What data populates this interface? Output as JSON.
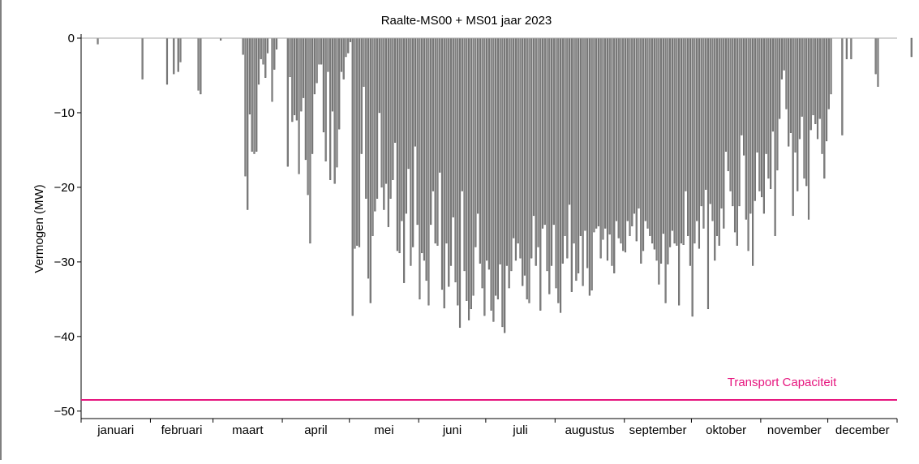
{
  "chart_data": {
    "type": "bar",
    "title": "Raalte-MS00 + MS01 jaar 2023",
    "xlabel": "",
    "ylabel": "Vermogen (MW)",
    "ylim": [
      -51,
      0
    ],
    "yticks": [
      0,
      -10,
      -20,
      -30,
      -40,
      -50
    ],
    "ytick_labels": [
      "0",
      "−10",
      "−20",
      "−30",
      "−40",
      "−50"
    ],
    "xlim": [
      0,
      365
    ],
    "months": [
      "januari",
      "februari",
      "maart",
      "april",
      "mei",
      "juni",
      "juli",
      "augustus",
      "september",
      "oktober",
      "november",
      "december"
    ],
    "month_starts": [
      0,
      31,
      59,
      90,
      120,
      151,
      181,
      212,
      243,
      273,
      304,
      334,
      365
    ],
    "grid": false,
    "bar_color": "#808080",
    "bar_edge_color": "#555555",
    "series": [
      {
        "values": [
          0,
          0,
          0,
          0,
          0,
          0,
          0,
          -0.8,
          0,
          0,
          0,
          0,
          0,
          0,
          0,
          0,
          0,
          0,
          0,
          0,
          0,
          0,
          0,
          0,
          0,
          0,
          0,
          -5.5,
          0,
          0,
          0,
          0,
          0,
          0,
          0,
          0,
          0,
          0,
          -6.2,
          0,
          0,
          -4.8,
          0,
          -4.5,
          -3.2,
          0,
          0,
          0,
          0,
          0,
          0,
          0,
          -7,
          -7.5,
          0,
          0,
          0,
          0,
          0,
          0,
          0,
          0,
          -0.3,
          0,
          0,
          0,
          0,
          0,
          0,
          0,
          0,
          0,
          -2.2,
          -18.5,
          -23,
          -10.2,
          -15.2,
          -15.5,
          -15.2,
          -6.2,
          -2.8,
          -3.5,
          -5.3,
          -2,
          0,
          -8.5,
          -4.2,
          -1.5,
          0,
          0,
          0,
          0,
          -17.2,
          -5.2,
          -11.2,
          -10.3,
          -11,
          -18.2,
          -9.8,
          -8,
          -16.3,
          -21,
          -27.5,
          -15.5,
          -7.5,
          -6,
          -3.5,
          -3.5,
          -12.6,
          -16.5,
          -4.5,
          -19,
          -9.8,
          -19.5,
          -17.3,
          -12.2,
          -4.5,
          -5.5,
          -2.5,
          -2,
          -0.5,
          -37.2,
          -28.2,
          -27.8,
          -28,
          -15.5,
          -6.5,
          -21.5,
          -32.2,
          -35.5,
          -26.5,
          -23.2,
          -21.5,
          -10,
          -20,
          -23,
          -19.5,
          -25.3,
          -21.5,
          -19,
          -14,
          -28.5,
          -28.8,
          -24.5,
          -32.8,
          -23.5,
          -17.5,
          -30.5,
          -28,
          -14.5,
          -25,
          -35,
          -28.8,
          -29.8,
          -32.5,
          -35.8,
          -25,
          -20.5,
          -27.5,
          -27.8,
          -18,
          -33.7,
          -36.2,
          -27.5,
          -33.3,
          -30.5,
          -24,
          -32.7,
          -35.8,
          -38.8,
          -20.5,
          -31.2,
          -35.2,
          -37.8,
          -36.3,
          -34.5,
          -28,
          -23.5,
          -30.2,
          -33.5,
          -37.2,
          -29.8,
          -31,
          -36.5,
          -38,
          -34.5,
          -35,
          -30.3,
          -38.7,
          -39.5,
          -30.5,
          -33.5,
          -31.2,
          -26.8,
          -29.8,
          -27.5,
          -29.5,
          -33.2,
          -31.8,
          -35,
          -35.5,
          -29.5,
          -23.8,
          -30.5,
          -28,
          -36.5,
          -25.5,
          -25,
          -31.2,
          -34.3,
          -30.5,
          -25,
          -33.5,
          -35.5,
          -36.8,
          -30.2,
          -26.5,
          -29.5,
          -22.3,
          -34,
          -27.5,
          -32.5,
          -31.5,
          -26.5,
          -33.2,
          -25.8,
          -30.8,
          -34.5,
          -33.8,
          -26,
          -25.5,
          -25.2,
          -29.5,
          -27,
          -25.5,
          -29.8,
          -26.3,
          -30.5,
          -31.5,
          -24.5,
          -26.8,
          -27.5,
          -28.5,
          -28.7,
          -24.5,
          -26.5,
          -25.2,
          -23.5,
          -27.2,
          -22.8,
          -30.2,
          -28.5,
          -24.5,
          -25.5,
          -26.5,
          -27.5,
          -28.3,
          -29.8,
          -33,
          -30.2,
          -26.2,
          -35.5,
          -30.3,
          -28,
          -25.8,
          -27.5,
          -27.8,
          -35.8,
          -27.5,
          -27.7,
          -20.5,
          -26.5,
          -30.5,
          -37.3,
          -27.5,
          -24.5,
          -28.2,
          -22.5,
          -25.5,
          -20.3,
          -36.3,
          -22.2,
          -24.5,
          -29.8,
          -26.5,
          -27.8,
          -22.8,
          -25.5,
          -15.2,
          -17.8,
          -20.5,
          -22.5,
          -26,
          -27.8,
          -22.5,
          -13,
          -15.7,
          -24.3,
          -28.5,
          -23.5,
          -30.5,
          -21.8,
          -15.3,
          -20.5,
          -21.3,
          -23.5,
          -15.5,
          -18.8,
          -20.2,
          -12.5,
          -26.5,
          -17.7,
          -10.8,
          -5.5,
          -4.3,
          -9.5,
          -14.5,
          -12.7,
          -23.8,
          -15.3,
          -20.5,
          -13.5,
          -10.5,
          -18.8,
          -19.8,
          -24.3,
          -12.3,
          -10.3,
          -11.5,
          -13.5,
          -10.8,
          -15.5,
          -18.8,
          -13.8,
          -9.5,
          -7.5,
          0,
          0,
          0,
          0,
          -13,
          0,
          -2.8,
          0,
          -2.8,
          0,
          0,
          0,
          0,
          0,
          0,
          0,
          0,
          0,
          0,
          -4.8,
          -6.5,
          0,
          0,
          0,
          0,
          0,
          0,
          0,
          0,
          0,
          0,
          0,
          0,
          0,
          0,
          -2.5,
          0,
          0,
          0,
          0,
          0,
          0,
          0,
          -1.8,
          0,
          0,
          0,
          0,
          0,
          0,
          0,
          0,
          0,
          0,
          0,
          0,
          0,
          0,
          0,
          0,
          0,
          0,
          0,
          0,
          0,
          0,
          0,
          0,
          0
        ]
      }
    ],
    "reference_line": {
      "label": "Transport Capaciteit",
      "value": -48.5,
      "color": "#e6157e"
    }
  }
}
